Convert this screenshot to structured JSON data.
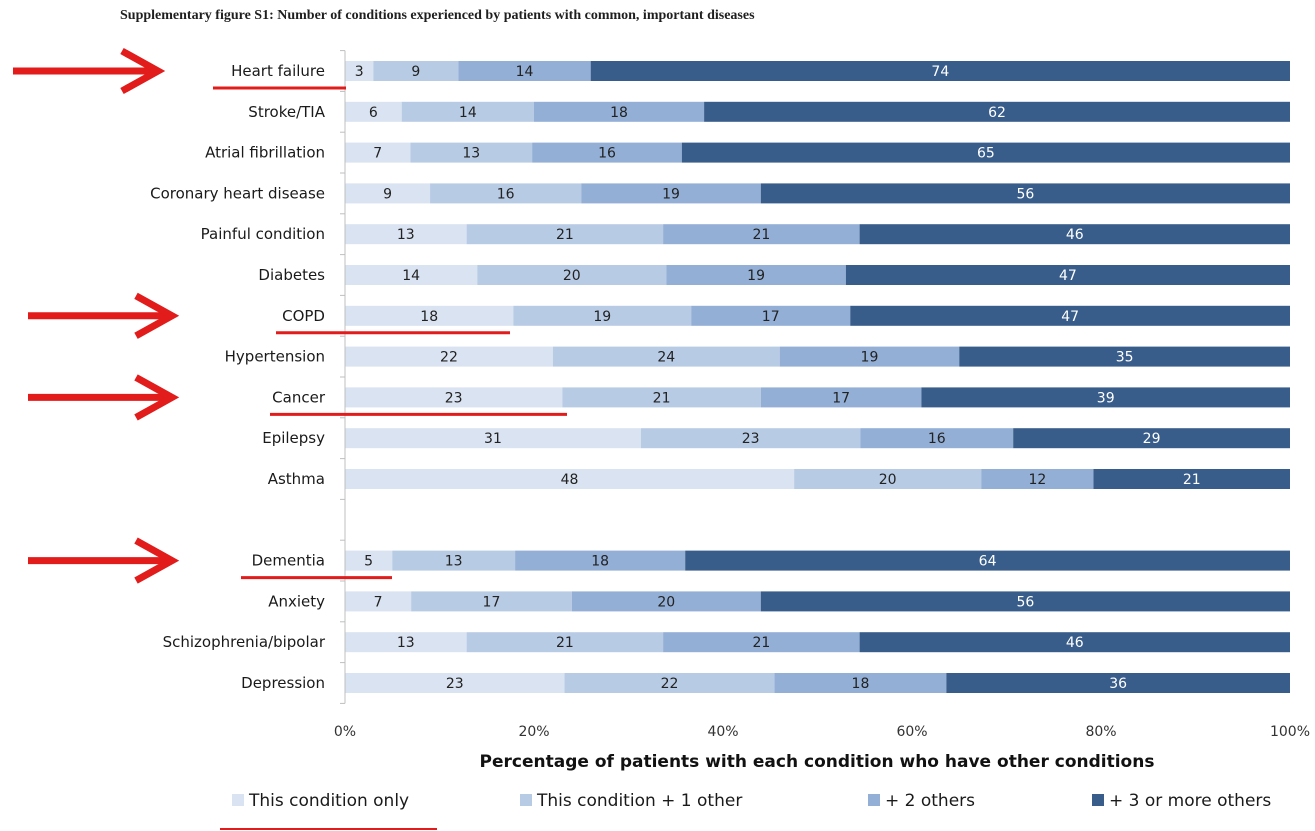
{
  "caption": "Supplementary figure S1: Number of conditions experienced by patients with common, important diseases",
  "colors": {
    "annotation_red": "#e21b1b"
  },
  "chart_data": {
    "type": "bar",
    "orientation": "horizontal",
    "stacked": true,
    "percent_stacked": true,
    "title": "",
    "xlabel": "Percentage of patients with each condition who have other conditions",
    "ylabel": "",
    "xlim": [
      0,
      100
    ],
    "x_ticks": [
      "0%",
      "20%",
      "40%",
      "60%",
      "80%",
      "100%"
    ],
    "grid": false,
    "legend_position": "bottom",
    "categories": [
      "Heart failure",
      "Stroke/TIA",
      "Atrial fibrillation",
      "Coronary heart disease",
      "Painful condition",
      "Diabetes",
      "COPD",
      "Hypertension",
      "Cancer",
      "Epilepsy",
      "Asthma",
      "",
      "Dementia",
      "Anxiety",
      "Schizophrenia/bipolar",
      "Depression"
    ],
    "series": [
      {
        "name": "This condition only",
        "color": "#dae3f1",
        "label_color": "#222222",
        "values": [
          3,
          6,
          7,
          9,
          13,
          14,
          18,
          22,
          23,
          31,
          48,
          null,
          5,
          7,
          13,
          23
        ]
      },
      {
        "name": "This condition + 1 other",
        "color": "#b8cbe4",
        "label_color": "#222222",
        "values": [
          9,
          14,
          13,
          16,
          21,
          20,
          19,
          24,
          21,
          23,
          20,
          null,
          13,
          17,
          21,
          22
        ]
      },
      {
        "name": "+ 2 others",
        "color": "#93afd6",
        "label_color": "#222222",
        "values": [
          14,
          18,
          16,
          19,
          21,
          19,
          17,
          19,
          17,
          16,
          12,
          null,
          18,
          20,
          21,
          18
        ]
      },
      {
        "name": "+ 3 or more others",
        "color": "#385d8a",
        "label_color": "#ffffff",
        "values": [
          74,
          62,
          65,
          56,
          46,
          47,
          47,
          35,
          39,
          29,
          21,
          null,
          64,
          56,
          46,
          36
        ]
      }
    ],
    "annotations": {
      "highlighted_categories": [
        "Heart failure",
        "COPD",
        "Cancer",
        "Dementia"
      ],
      "highlighted_legend_entry": "This condition only",
      "marker": "red arrow and red underline"
    }
  }
}
